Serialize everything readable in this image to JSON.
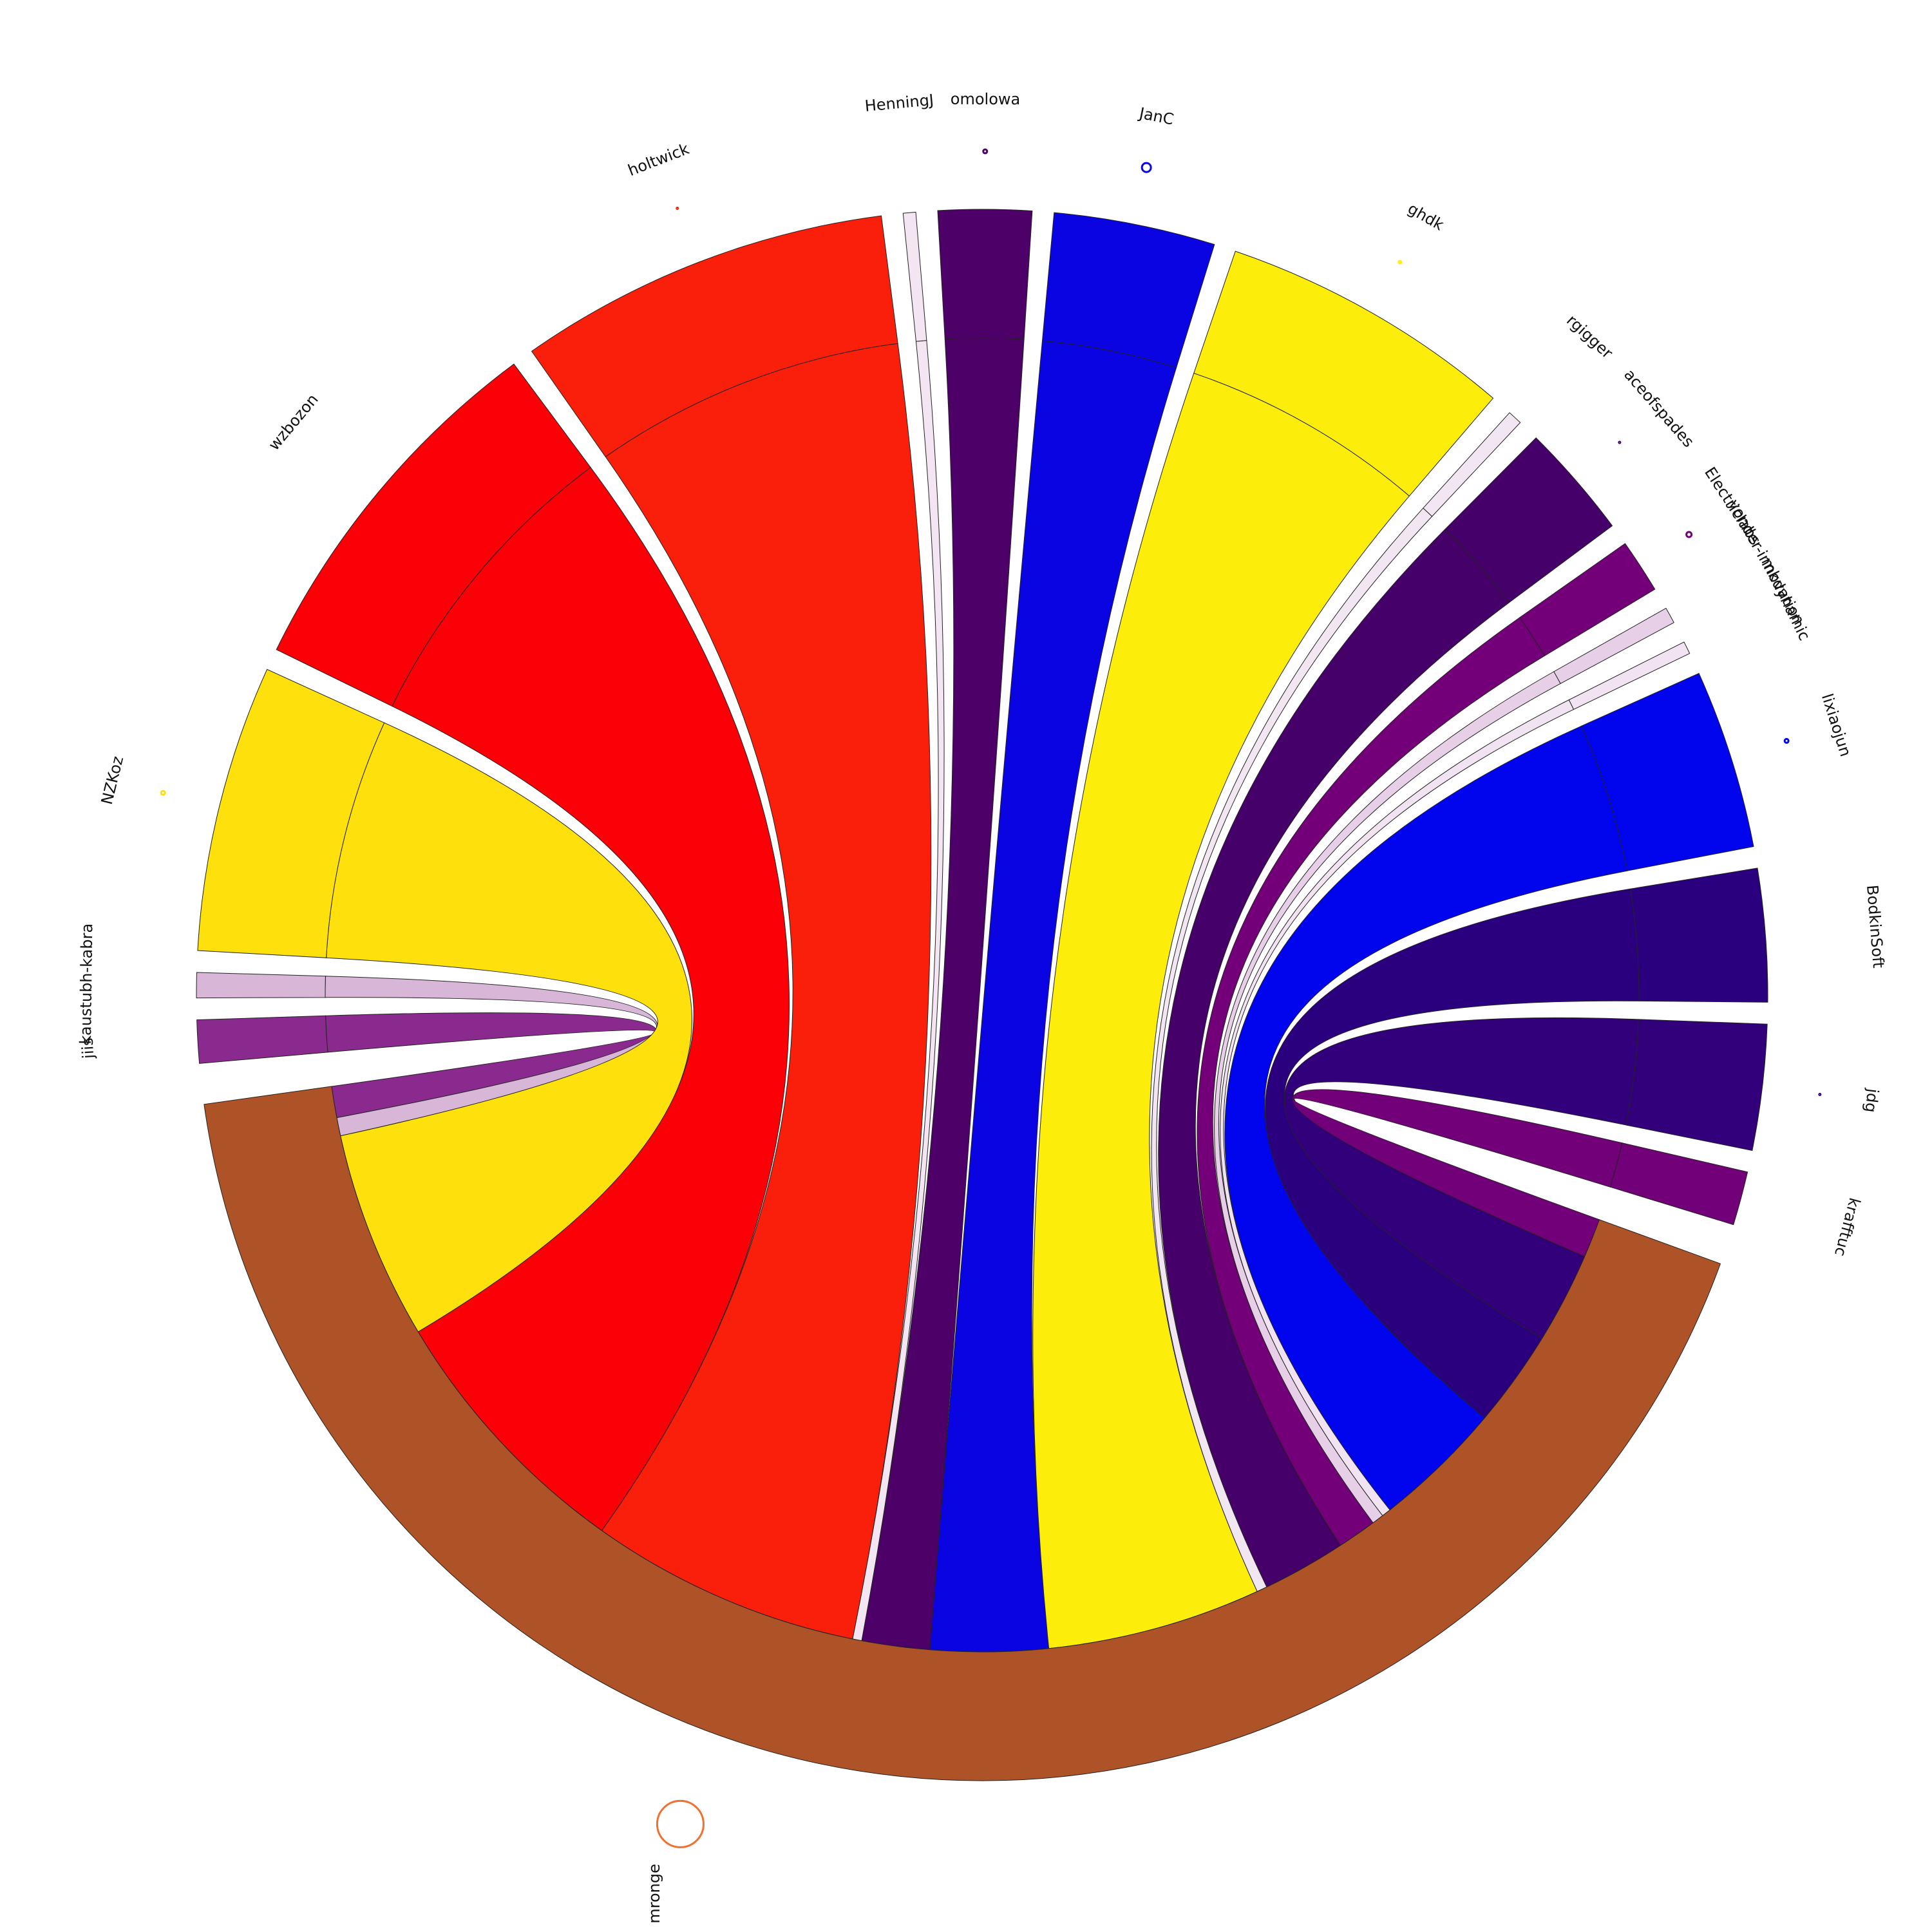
{
  "chart_data": {
    "type": "chord",
    "title": "",
    "hub": {
      "name": "mronge",
      "color": "#ae5327",
      "marker_color": "#f07030",
      "marker_size": 36
    },
    "contributors": [
      {
        "name": "jiis",
        "value": 1.2,
        "color": "#8a2a8e",
        "marker_size": 0
      },
      {
        "name": "kaustubh-kabra",
        "value": 0.7,
        "color": "#d8b6d8",
        "marker_size": 0
      },
      {
        "name": "NZKoz",
        "value": 8.0,
        "color": "#fde00c",
        "marker_size": 3
      },
      {
        "name": "wzbozon",
        "value": 10.3,
        "color": "#fb0007",
        "marker_size": 0
      },
      {
        "name": "holtwick",
        "value": 10.4,
        "color": "#f91f0b",
        "marker_size": 1
      },
      {
        "name": "HenningJ",
        "value": 0.35,
        "color": "#f3e6f2",
        "marker_size": 0
      },
      {
        "name": "omolowa",
        "value": 2.6,
        "color": "#4d0068",
        "marker_size": 3
      },
      {
        "name": "JanC",
        "value": 4.5,
        "color": "#0a04e2",
        "marker_size": 7
      },
      {
        "name": "ghdk",
        "value": 8.2,
        "color": "#fded0b",
        "marker_size": 2
      },
      {
        "name": "rgigger",
        "value": 0.4,
        "color": "#f2e6f2",
        "marker_size": 0
      },
      {
        "name": "aceofspades",
        "value": 3.2,
        "color": "#45006a",
        "marker_size": 1
      },
      {
        "name": "Electriclabs",
        "value": 1.5,
        "color": "#730079",
        "marker_size": 4
      },
      {
        "name": "yonder-innovation",
        "value": 0.45,
        "color": "#e7cfe7",
        "marker_size": 0
      },
      {
        "name": "mkdynamic",
        "value": 0.35,
        "color": "#f1e3f1",
        "marker_size": 0
      },
      {
        "name": "lixiaojun",
        "value": 5.0,
        "color": "#0005ed",
        "marker_size": 3
      },
      {
        "name": "BodkinSoft",
        "value": 3.7,
        "color": "#2b007e",
        "marker_size": 0
      },
      {
        "name": "jdg",
        "value": 3.5,
        "color": "#31007a",
        "marker_size": 1
      },
      {
        "name": "krafftuc",
        "value": 1.5,
        "color": "#720078",
        "marker_size": 0
      }
    ],
    "legend": "none"
  }
}
